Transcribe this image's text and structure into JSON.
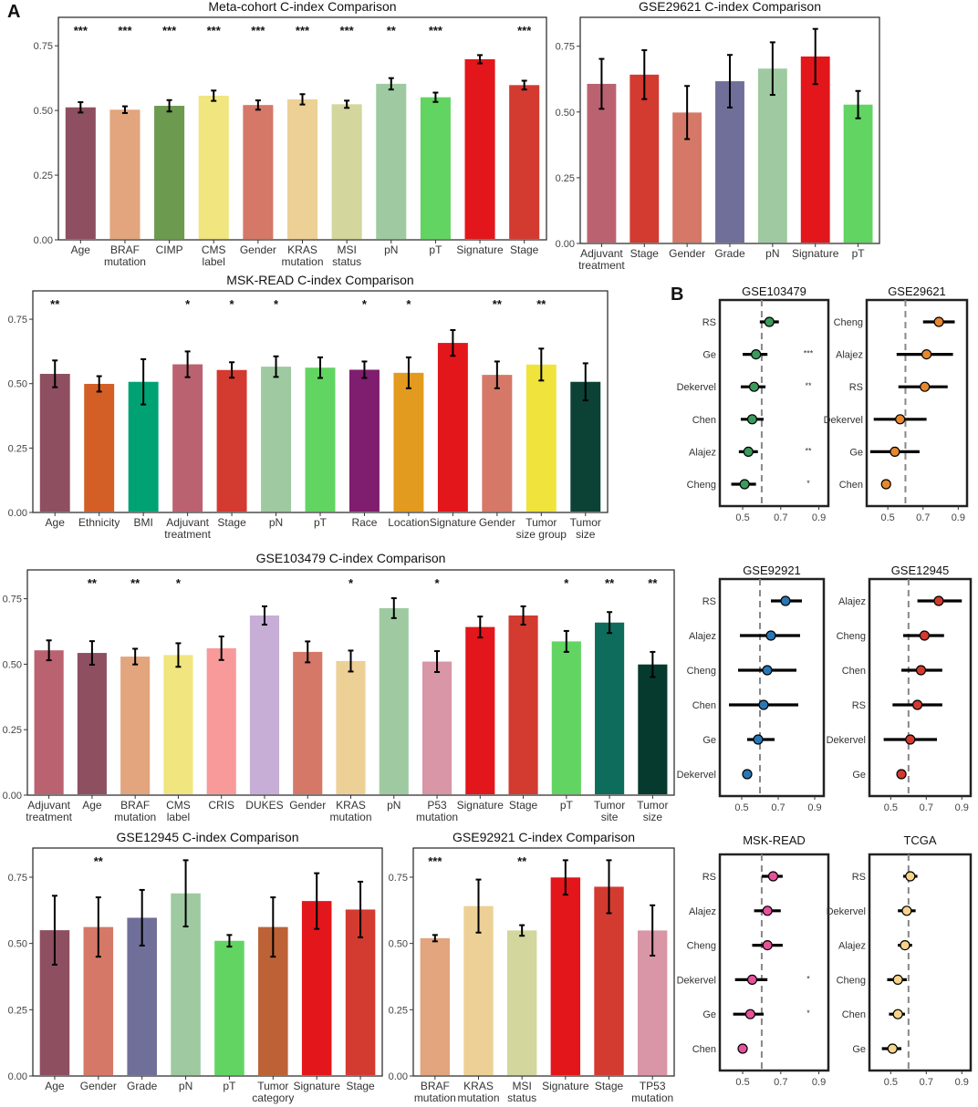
{
  "panel_labels": {
    "a": "A",
    "b": "B"
  },
  "colors": {
    "frame": "#222222",
    "ref_line": "#888888",
    "errorbar": "#000000"
  },
  "chart_data": [
    {
      "id": "meta",
      "type": "bar",
      "title": "Meta-cohort C-index Comparison",
      "categories": [
        "Age",
        "BRAF\nmutation",
        "CIMP",
        "CMS\nlabel",
        "Gender",
        "KRAS\nmutation",
        "MSI\nstatus",
        "pN",
        "pT",
        "Signature",
        "Stage"
      ],
      "values": [
        0.512,
        0.503,
        0.518,
        0.557,
        0.521,
        0.543,
        0.524,
        0.603,
        0.551,
        0.698,
        0.598
      ],
      "err": [
        0.02,
        0.013,
        0.022,
        0.02,
        0.018,
        0.02,
        0.014,
        0.022,
        0.018,
        0.016,
        0.017
      ],
      "colors": [
        "#8e4f61",
        "#e2a57d",
        "#6c9a4e",
        "#f0e57e",
        "#d57868",
        "#ecd096",
        "#d3d69d",
        "#9fcaa1",
        "#62d462",
        "#e3161b",
        "#d33a30"
      ],
      "significance": [
        "***",
        "***",
        "***",
        "***",
        "***",
        "***",
        "***",
        "**",
        "***",
        "",
        "***"
      ],
      "ylim": [
        0,
        0.86
      ],
      "yticks": [
        0.0,
        0.25,
        0.5,
        0.75
      ]
    },
    {
      "id": "gse29621",
      "type": "bar",
      "title": "GSE29621 C-index Comparison",
      "categories": [
        "Adjuvant\ntreatment",
        "Stage",
        "Gender",
        "Grade",
        "pN",
        "Signature",
        "pT"
      ],
      "values": [
        0.607,
        0.642,
        0.498,
        0.617,
        0.665,
        0.711,
        0.528
      ],
      "err": [
        0.095,
        0.093,
        0.101,
        0.1,
        0.1,
        0.105,
        0.052
      ],
      "colors": [
        "#bb6270",
        "#d33a30",
        "#d57868",
        "#6f6f9a",
        "#9fcaa1",
        "#e3161b",
        "#62d462"
      ],
      "significance": [
        "",
        "",
        "",
        "",
        "",
        "",
        ""
      ],
      "ylim": [
        0,
        0.86
      ],
      "yticks": [
        0.0,
        0.25,
        0.5,
        0.75
      ]
    },
    {
      "id": "mskread",
      "type": "bar",
      "title": "MSK-READ C-index Comparison",
      "categories": [
        "Age",
        "Ethnicity",
        "BMI",
        "Adjuvant\ntreatment",
        "Stage",
        "pN",
        "pT",
        "Race",
        "Location",
        "Signature",
        "Gender",
        "Tumor\nsize group",
        "Tumor\nsize"
      ],
      "values": [
        0.538,
        0.499,
        0.507,
        0.575,
        0.553,
        0.566,
        0.562,
        0.554,
        0.542,
        0.658,
        0.534,
        0.574,
        0.507
      ],
      "err": [
        0.052,
        0.03,
        0.088,
        0.05,
        0.03,
        0.04,
        0.04,
        0.032,
        0.06,
        0.05,
        0.052,
        0.062,
        0.072
      ],
      "colors": [
        "#8e4f61",
        "#d35f27",
        "#00a274",
        "#bb6270",
        "#d33a30",
        "#9fcaa1",
        "#62d462",
        "#7f1d6e",
        "#e29a1f",
        "#e3161b",
        "#d57868",
        "#f0e33c",
        "#0c4236"
      ],
      "significance": [
        "**",
        "",
        "",
        "*",
        "*",
        "*",
        "",
        "*",
        "*",
        "",
        "**",
        "**",
        ""
      ],
      "ylim": [
        0,
        0.86
      ],
      "yticks": [
        0.0,
        0.25,
        0.5,
        0.75
      ]
    },
    {
      "id": "gse103479",
      "type": "bar",
      "title": "GSE103479 C-index Comparison",
      "categories": [
        "Adjuvant\ntreatment",
        "Age",
        "BRAF\nmutation",
        "CMS\nlabel",
        "CRIS",
        "DUKES",
        "Gender",
        "KRAS\nmutation",
        "pN",
        "P53\nmutation",
        "Signature",
        "Stage",
        "pT",
        "Tumor\nsite",
        "Tumor\nsize"
      ],
      "values": [
        0.553,
        0.543,
        0.529,
        0.535,
        0.561,
        0.686,
        0.547,
        0.512,
        0.714,
        0.51,
        0.642,
        0.686,
        0.587,
        0.659,
        0.499
      ],
      "err": [
        0.038,
        0.045,
        0.03,
        0.045,
        0.045,
        0.035,
        0.04,
        0.04,
        0.038,
        0.04,
        0.04,
        0.035,
        0.04,
        0.04,
        0.048
      ],
      "colors": [
        "#bb6270",
        "#8e4f61",
        "#e2a57d",
        "#f0e57e",
        "#f99a9a",
        "#c7aed6",
        "#d57868",
        "#ecd096",
        "#9fcaa1",
        "#d896a6",
        "#e3161b",
        "#d33a30",
        "#62d462",
        "#0d6c5c",
        "#063a2e"
      ],
      "significance": [
        "",
        "**",
        "**",
        "*",
        "",
        "",
        "",
        "*",
        "",
        "*",
        "",
        "",
        "*",
        "**",
        "**"
      ],
      "ylim": [
        0,
        0.86
      ],
      "yticks": [
        0.0,
        0.25,
        0.5,
        0.75
      ]
    },
    {
      "id": "gse12945",
      "type": "bar",
      "title": "GSE12945 C-index Comparison",
      "categories": [
        "Age",
        "Gender",
        "Grade",
        "pN",
        "pT",
        "Tumor\ncategory",
        "Signature",
        "Stage"
      ],
      "values": [
        0.55,
        0.562,
        0.597,
        0.689,
        0.51,
        0.562,
        0.66,
        0.628
      ],
      "err": [
        0.13,
        0.112,
        0.105,
        0.125,
        0.022,
        0.112,
        0.105,
        0.105
      ],
      "colors": [
        "#8e4f61",
        "#d57868",
        "#6f6f9a",
        "#9fcaa1",
        "#62d462",
        "#bc6236",
        "#e3161b",
        "#d33a30"
      ],
      "significance": [
        "",
        "**",
        "",
        "",
        "",
        "",
        "",
        ""
      ],
      "ylim": [
        0,
        0.86
      ],
      "yticks": [
        0.0,
        0.25,
        0.5,
        0.75
      ]
    },
    {
      "id": "gse92921",
      "type": "bar",
      "title": "GSE92921 C-index Comparison",
      "categories": [
        "BRAF\nmutation",
        "KRAS\nmutation",
        "MSI\nstatus",
        "Signature",
        "Stage",
        "TP53\nmutation"
      ],
      "values": [
        0.52,
        0.641,
        0.549,
        0.749,
        0.714,
        0.549
      ],
      "err": [
        0.012,
        0.1,
        0.02,
        0.065,
        0.1,
        0.095
      ],
      "colors": [
        "#e2a57d",
        "#ecd096",
        "#d3d69d",
        "#e3161b",
        "#d33a30",
        "#d896a6"
      ],
      "significance": [
        "***",
        "",
        "**",
        "",
        "",
        ""
      ],
      "ylim": [
        0,
        0.86
      ],
      "yticks": [
        0.0,
        0.25,
        0.5,
        0.75
      ]
    },
    {
      "id": "f_gse103479",
      "type": "forest",
      "title": "GSE103479",
      "point_color": "#3a9b5c",
      "labels": [
        "RS",
        "Ge",
        "Dekervel",
        "Chen",
        "Alajez",
        "Cheng"
      ],
      "est": [
        0.64,
        0.57,
        0.56,
        0.55,
        0.53,
        0.51
      ],
      "lo": [
        0.59,
        0.5,
        0.49,
        0.49,
        0.48,
        0.44
      ],
      "hi": [
        0.69,
        0.63,
        0.62,
        0.61,
        0.58,
        0.57
      ],
      "sig": [
        "",
        "***",
        "**",
        "",
        "**",
        "*"
      ],
      "xlim": [
        0.38,
        0.95
      ],
      "xticks": [
        0.5,
        0.7,
        0.9
      ],
      "xtick_labels": [
        "0.5",
        "0.7",
        "0.9"
      ],
      "ref": 0.6
    },
    {
      "id": "f_gse29621",
      "type": "forest",
      "title": "GSE29621",
      "point_color": "#e8872e",
      "labels": [
        "Cheng",
        "Alajez",
        "RS",
        "Dekervel",
        "Ge",
        "Chen"
      ],
      "est": [
        0.79,
        0.72,
        0.71,
        0.57,
        0.54,
        0.49
      ],
      "lo": [
        0.7,
        0.55,
        0.56,
        0.42,
        0.4,
        0.48
      ],
      "hi": [
        0.88,
        0.87,
        0.84,
        0.72,
        0.68,
        0.5
      ],
      "sig": [
        "",
        "",
        "",
        "",
        "",
        ""
      ],
      "xlim": [
        0.38,
        0.95
      ],
      "xticks": [
        0.5,
        0.7,
        0.9
      ],
      "xtick_labels": [
        "0.5",
        "0.7",
        "0.9"
      ],
      "ref": 0.6
    },
    {
      "id": "f_gse92921",
      "type": "forest",
      "title": "GSE92921",
      "point_color": "#2a77b5",
      "labels": [
        "RS",
        "Alajez",
        "Cheng",
        "Chen",
        "Ge",
        "Dekervel"
      ],
      "est": [
        0.74,
        0.66,
        0.64,
        0.62,
        0.59,
        0.53
      ],
      "lo": [
        0.66,
        0.49,
        0.48,
        0.43,
        0.53,
        0.52
      ],
      "hi": [
        0.83,
        0.82,
        0.8,
        0.81,
        0.68,
        0.54
      ],
      "sig": [
        "",
        "",
        "",
        "",
        "",
        ""
      ],
      "xlim": [
        0.38,
        0.95
      ],
      "xticks": [
        0.5,
        0.7,
        0.9
      ],
      "xtick_labels": [
        "0.5",
        "0.7",
        "0.9"
      ],
      "ref": 0.6
    },
    {
      "id": "f_gse12945",
      "type": "forest",
      "title": "GSE12945",
      "point_color": "#d33a30",
      "labels": [
        "Alajez",
        "Cheng",
        "Chen",
        "RS",
        "Dekervel",
        "Ge"
      ],
      "est": [
        0.77,
        0.69,
        0.67,
        0.65,
        0.61,
        0.56
      ],
      "lo": [
        0.65,
        0.57,
        0.56,
        0.51,
        0.46,
        0.55
      ],
      "hi": [
        0.9,
        0.8,
        0.79,
        0.79,
        0.76,
        0.57
      ],
      "sig": [
        "",
        "",
        "",
        "",
        "",
        ""
      ],
      "xlim": [
        0.38,
        0.95
      ],
      "xticks": [
        0.5,
        0.7,
        0.9
      ],
      "xtick_labels": [
        "0.5",
        "0.7",
        "0.9"
      ],
      "ref": 0.6
    },
    {
      "id": "f_mskread",
      "type": "forest",
      "title": "MSK-READ",
      "point_color": "#e8529b",
      "labels": [
        "RS",
        "Alajez",
        "Cheng",
        "Dekervel",
        "Ge",
        "Chen"
      ],
      "est": [
        0.66,
        0.63,
        0.63,
        0.55,
        0.54,
        0.5
      ],
      "lo": [
        0.6,
        0.56,
        0.55,
        0.46,
        0.45,
        0.49
      ],
      "hi": [
        0.71,
        0.7,
        0.71,
        0.63,
        0.61,
        0.51
      ],
      "sig": [
        "",
        "",
        "",
        "*",
        "*",
        ""
      ],
      "xlim": [
        0.38,
        0.95
      ],
      "xticks": [
        0.5,
        0.7,
        0.9
      ],
      "xtick_labels": [
        "0.5",
        "0.7",
        "0.9"
      ],
      "ref": 0.6
    },
    {
      "id": "f_tcga",
      "type": "forest",
      "title": "TCGA",
      "point_color": "#f6d58a",
      "labels": [
        "RS",
        "Dekervel",
        "Alajez",
        "Cheng",
        "Chen",
        "Ge"
      ],
      "est": [
        0.61,
        0.59,
        0.58,
        0.54,
        0.54,
        0.51
      ],
      "lo": [
        0.57,
        0.54,
        0.54,
        0.48,
        0.49,
        0.45
      ],
      "hi": [
        0.65,
        0.64,
        0.62,
        0.59,
        0.58,
        0.56
      ],
      "sig": [
        "",
        "",
        "",
        "",
        "",
        ""
      ],
      "xlim": [
        0.38,
        0.95
      ],
      "xticks": [
        0.5,
        0.7,
        0.9
      ],
      "xtick_labels": [
        "0.5",
        "0.7",
        "0.9"
      ],
      "ref": 0.6
    }
  ]
}
